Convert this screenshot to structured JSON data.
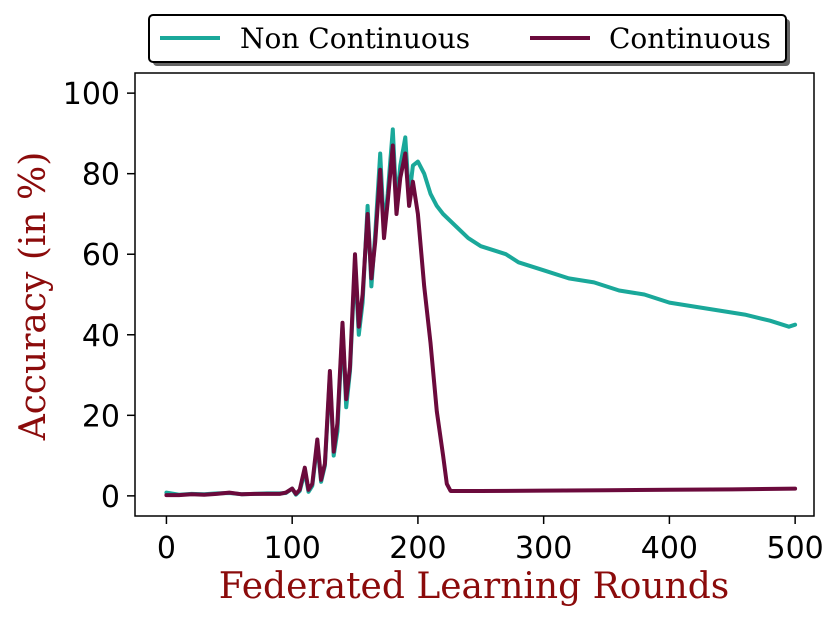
{
  "chart_data": {
    "type": "line",
    "title": "",
    "xlabel": "Federated Learning Rounds",
    "ylabel": "Accuracy (in %)",
    "xlim": [
      -25,
      515
    ],
    "ylim": [
      -5,
      105
    ],
    "xticks": [
      0,
      100,
      200,
      300,
      400,
      500
    ],
    "yticks": [
      0,
      20,
      40,
      60,
      80,
      100
    ],
    "grid": false,
    "legend_position": "top-center",
    "legend_ncol": 2,
    "series": [
      {
        "name": "Non Continuous",
        "color": "#1aa89a",
        "x": [
          0,
          10,
          20,
          30,
          40,
          50,
          60,
          70,
          80,
          90,
          95,
          100,
          103,
          106,
          110,
          113,
          116,
          120,
          123,
          126,
          130,
          133,
          136,
          140,
          143,
          146,
          150,
          153,
          156,
          160,
          163,
          166,
          170,
          173,
          176,
          180,
          183,
          186,
          190,
          193,
          196,
          200,
          205,
          210,
          215,
          220,
          230,
          240,
          250,
          260,
          270,
          280,
          290,
          300,
          320,
          340,
          360,
          380,
          400,
          420,
          440,
          460,
          480,
          490,
          495,
          500
        ],
        "y": [
          0.8,
          0.3,
          0.5,
          0.4,
          0.6,
          0.7,
          0.4,
          0.5,
          0.6,
          0.6,
          0.7,
          1.8,
          0.3,
          1.2,
          6.0,
          1.0,
          2.5,
          13.0,
          3.5,
          7.5,
          30.0,
          10.0,
          16.0,
          42.0,
          22.0,
          31.0,
          58.0,
          40.0,
          48.0,
          72.0,
          52.0,
          65.0,
          85.0,
          66.0,
          75.0,
          91.0,
          72.0,
          82.0,
          89.0,
          74.0,
          82.0,
          83.0,
          80.0,
          75.0,
          72.0,
          70.0,
          67.0,
          64.0,
          62.0,
          61.0,
          60.0,
          58.0,
          57.0,
          56.0,
          54.0,
          53.0,
          51.0,
          50.0,
          48.0,
          47.0,
          46.0,
          45.0,
          43.5,
          42.5,
          42.0,
          42.5
        ]
      },
      {
        "name": "Continuous",
        "color": "#6b0a3c",
        "x": [
          0,
          10,
          20,
          30,
          40,
          50,
          60,
          70,
          80,
          90,
          95,
          100,
          103,
          106,
          110,
          113,
          116,
          120,
          123,
          126,
          130,
          133,
          136,
          140,
          143,
          146,
          150,
          153,
          156,
          160,
          163,
          166,
          170,
          173,
          176,
          180,
          183,
          186,
          190,
          193,
          196,
          200,
          205,
          210,
          215,
          220,
          223,
          226,
          230,
          250,
          300,
          350,
          400,
          450,
          500
        ],
        "y": [
          0.2,
          0.2,
          0.4,
          0.3,
          0.5,
          0.8,
          0.4,
          0.5,
          0.5,
          0.5,
          0.8,
          1.8,
          0.5,
          1.5,
          7.0,
          1.5,
          3.0,
          14.0,
          4.0,
          8.0,
          31.0,
          11.0,
          18.0,
          43.0,
          24.0,
          32.0,
          60.0,
          42.0,
          50.0,
          70.0,
          54.0,
          63.0,
          81.0,
          64.0,
          73.0,
          87.0,
          70.0,
          79.0,
          85.0,
          72.0,
          78.0,
          70.0,
          52.0,
          38.0,
          21.0,
          10.0,
          3.0,
          1.2,
          1.2,
          1.2,
          1.3,
          1.4,
          1.5,
          1.6,
          1.8
        ]
      }
    ]
  }
}
